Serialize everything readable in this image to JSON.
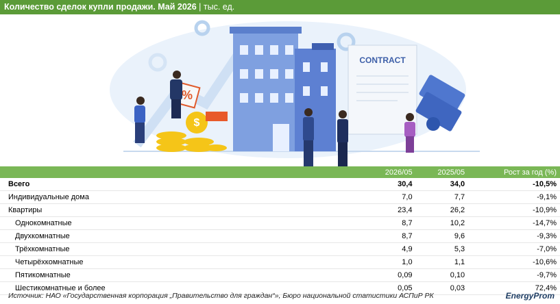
{
  "header": {
    "title": "Количество сделок купли продажи. Май 2026",
    "unit": "| тыс. ед."
  },
  "illustration": {
    "contract": "CONTRACT",
    "percent": "%",
    "dollar": "$"
  },
  "table": {
    "columns": [
      "2026/05",
      "2025/05",
      "Рост за год (%)"
    ],
    "rows": [
      [
        "Всего",
        "30,4",
        "34,0",
        "-10,5%"
      ],
      [
        "Индивидуальные дома",
        "7,0",
        "7,7",
        "-9,1%"
      ],
      [
        "Квартиры",
        "23,4",
        "26,2",
        "-10,9%"
      ],
      [
        "Однокомнатные",
        "8,7",
        "10,2",
        "-14,7%"
      ],
      [
        "Двухкомнатные",
        "8,7",
        "9,6",
        "-9,3%"
      ],
      [
        "Трёхкомнатные",
        "4,9",
        "5,3",
        "-7,0%"
      ],
      [
        "Четырёхкомнатные",
        "1,0",
        "1,1",
        "-10,6%"
      ],
      [
        "Пятикомнатные",
        "0,09",
        "0,10",
        "-9,7%"
      ],
      [
        "Шестикомнатные и более",
        "0,05",
        "0,03",
        "72,4%"
      ]
    ]
  },
  "footer": {
    "source": "Источник: НАО «Государственная корпорация „Правительство для граждан“», Бюро национальной статистики АСПиР РК",
    "logo": "EnergyProm"
  }
}
